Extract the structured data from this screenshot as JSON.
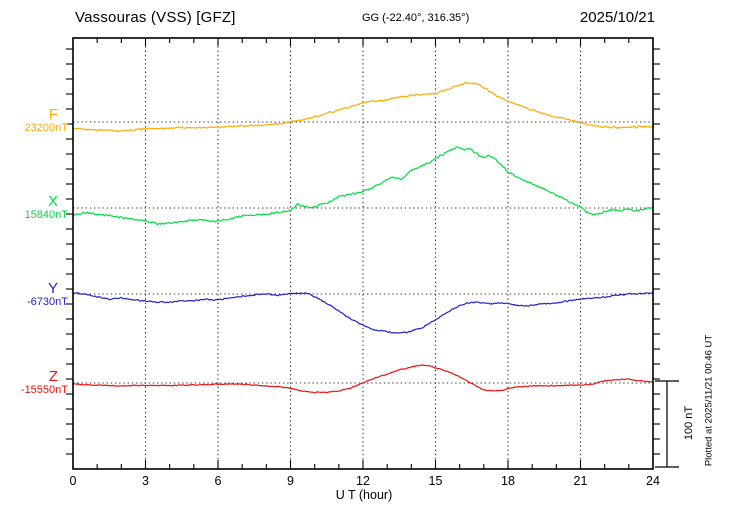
{
  "header": {
    "station_title": "Vassouras (VSS)  [GFZ]",
    "gg_coordinates": "GG (-22.40°, 316.35°)",
    "date": "2025/10/21"
  },
  "axes": {
    "x_title": "U T (hour)",
    "x_ticks": [
      0,
      3,
      6,
      9,
      12,
      15,
      18,
      21,
      24
    ]
  },
  "footer": {
    "plotted_at": "Plotted at 2025/11/21 00:46 UT"
  },
  "chart_data": {
    "type": "line",
    "title": "Vassouras (VSS) [GFZ] magnetogram 2025/10/21",
    "xlabel": "U T (hour)",
    "x_range": [
      0,
      24
    ],
    "x_ticks": [
      0,
      3,
      6,
      9,
      12,
      15,
      18,
      21,
      24
    ],
    "grid_hours": [
      3,
      6,
      9,
      12,
      15,
      18,
      21
    ],
    "grid": true,
    "scale_bar": {
      "label": "100 nT",
      "nt": 100
    },
    "series": [
      {
        "name": "F",
        "base_label": "23200nT",
        "base_value_nt": 23200,
        "color": "#FFAA00",
        "units": "nT offset from base",
        "points": [
          [
            0,
            -8
          ],
          [
            0.5,
            -8.5
          ],
          [
            1,
            -9
          ],
          [
            1.5,
            -9.5
          ],
          [
            2,
            -10.5
          ],
          [
            2.5,
            -9.5
          ],
          [
            3,
            -8
          ],
          [
            3.5,
            -7.5
          ],
          [
            4,
            -7
          ],
          [
            4.5,
            -6.5
          ],
          [
            5,
            -6.5
          ],
          [
            5.5,
            -6
          ],
          [
            6,
            -6
          ],
          [
            6.5,
            -5.5
          ],
          [
            7,
            -4.5
          ],
          [
            7.5,
            -4
          ],
          [
            8,
            -3.5
          ],
          [
            8.5,
            -2
          ],
          [
            9,
            0
          ],
          [
            9.5,
            2.5
          ],
          [
            10,
            6
          ],
          [
            10.5,
            10
          ],
          [
            11,
            14
          ],
          [
            11.5,
            18
          ],
          [
            12,
            22
          ],
          [
            12.5,
            24
          ],
          [
            13,
            26
          ],
          [
            13.5,
            29
          ],
          [
            14,
            31
          ],
          [
            14.5,
            32
          ],
          [
            15,
            33
          ],
          [
            15.5,
            38
          ],
          [
            16,
            43
          ],
          [
            16.3,
            45.5
          ],
          [
            16.8,
            44
          ],
          [
            17,
            40
          ],
          [
            17.5,
            31
          ],
          [
            18,
            24
          ],
          [
            18.5,
            19
          ],
          [
            19,
            14
          ],
          [
            19.5,
            9.5
          ],
          [
            20,
            6
          ],
          [
            20.5,
            3
          ],
          [
            21,
            0
          ],
          [
            21.3,
            -3
          ],
          [
            21.7,
            -5
          ],
          [
            22,
            -5.5
          ],
          [
            22.5,
            -6.5
          ],
          [
            23,
            -6
          ],
          [
            23.5,
            -5.5
          ],
          [
            24,
            -5
          ]
        ]
      },
      {
        "name": "X",
        "base_label": "15840nT",
        "base_value_nt": 15840,
        "color": "#00DD44",
        "units": "nT offset from base",
        "points": [
          [
            0,
            -8
          ],
          [
            0.3,
            -6.5
          ],
          [
            0.7,
            -6
          ],
          [
            1,
            -7.5
          ],
          [
            1.5,
            -9
          ],
          [
            2,
            -11
          ],
          [
            2.5,
            -13
          ],
          [
            3,
            -15
          ],
          [
            3.5,
            -18.5
          ],
          [
            4,
            -17.5
          ],
          [
            4.5,
            -16
          ],
          [
            5,
            -14
          ],
          [
            5.5,
            -14.5
          ],
          [
            6,
            -15
          ],
          [
            6.5,
            -12.5
          ],
          [
            7,
            -9.5
          ],
          [
            7.5,
            -8
          ],
          [
            8,
            -7
          ],
          [
            8.5,
            -5
          ],
          [
            9,
            -2.5
          ],
          [
            9.3,
            4
          ],
          [
            9.6,
            1
          ],
          [
            10,
            1.5
          ],
          [
            10.5,
            6
          ],
          [
            11,
            13
          ],
          [
            11.5,
            16
          ],
          [
            12,
            19
          ],
          [
            12.3,
            23
          ],
          [
            12.6,
            27
          ],
          [
            13,
            33
          ],
          [
            13.3,
            36
          ],
          [
            13.6,
            33
          ],
          [
            14,
            44
          ],
          [
            14.3,
            47
          ],
          [
            14.7,
            52
          ],
          [
            15,
            58
          ],
          [
            15.3,
            62
          ],
          [
            15.6,
            67
          ],
          [
            15.9,
            71
          ],
          [
            16.2,
            68
          ],
          [
            16.4,
            70
          ],
          [
            16.6,
            65
          ],
          [
            17,
            58
          ],
          [
            17.2,
            61
          ],
          [
            17.5,
            56
          ],
          [
            18,
            42
          ],
          [
            18.5,
            34
          ],
          [
            19,
            28
          ],
          [
            19.5,
            22
          ],
          [
            20,
            15
          ],
          [
            20.5,
            8
          ],
          [
            21,
            1
          ],
          [
            21.2,
            -4
          ],
          [
            21.5,
            -8
          ],
          [
            21.8,
            -6
          ],
          [
            22,
            -4.5
          ],
          [
            22.3,
            -2
          ],
          [
            22.6,
            -3
          ],
          [
            23,
            -1.5
          ],
          [
            23.3,
            -3
          ],
          [
            23.6,
            -1.5
          ],
          [
            24,
            0.5
          ]
        ]
      },
      {
        "name": "Y",
        "base_label": "-6730nT",
        "base_value_nt": -6730,
        "color": "#2222CC",
        "units": "nT offset from base",
        "points": [
          [
            0,
            1
          ],
          [
            0.5,
            0
          ],
          [
            1,
            -3.5
          ],
          [
            1.5,
            -6
          ],
          [
            2,
            -4.5
          ],
          [
            2.5,
            -7
          ],
          [
            3,
            -8
          ],
          [
            3.5,
            -9.5
          ],
          [
            4,
            -9.5
          ],
          [
            4.5,
            -8
          ],
          [
            5,
            -8
          ],
          [
            5.5,
            -6
          ],
          [
            6,
            -7
          ],
          [
            6.5,
            -4.5
          ],
          [
            7,
            -2.5
          ],
          [
            7.5,
            -1
          ],
          [
            8,
            0
          ],
          [
            8.5,
            -1.5
          ],
          [
            9,
            0.5
          ],
          [
            9.5,
            1
          ],
          [
            9.8,
            0
          ],
          [
            10,
            -3.5
          ],
          [
            10.5,
            -10.5
          ],
          [
            11,
            -20
          ],
          [
            11.5,
            -29
          ],
          [
            12,
            -36
          ],
          [
            12.5,
            -42
          ],
          [
            13,
            -44
          ],
          [
            13.4,
            -45.5
          ],
          [
            13.8,
            -44.5
          ],
          [
            14,
            -43
          ],
          [
            14.5,
            -38.5
          ],
          [
            15,
            -30
          ],
          [
            15.5,
            -21
          ],
          [
            16,
            -14
          ],
          [
            16.3,
            -10.5
          ],
          [
            16.7,
            -9.5
          ],
          [
            17,
            -10.5
          ],
          [
            17.3,
            -11.5
          ],
          [
            17.7,
            -10.5
          ],
          [
            18,
            -10.5
          ],
          [
            18.3,
            -13
          ],
          [
            18.7,
            -14
          ],
          [
            19,
            -13
          ],
          [
            19.3,
            -11.5
          ],
          [
            19.7,
            -11.5
          ],
          [
            20,
            -10.5
          ],
          [
            20.5,
            -8
          ],
          [
            21,
            -6
          ],
          [
            21.5,
            -4.5
          ],
          [
            22,
            -3.5
          ],
          [
            22.5,
            -1.5
          ],
          [
            23,
            0
          ],
          [
            23.5,
            0.5
          ],
          [
            24,
            1
          ]
        ]
      },
      {
        "name": "Z",
        "base_label": "-15550nT",
        "base_value_nt": -15550,
        "color": "#EE1111",
        "units": "nT offset from base",
        "points": [
          [
            0,
            -1
          ],
          [
            0.5,
            -2
          ],
          [
            1,
            -2.5
          ],
          [
            1.5,
            -3
          ],
          [
            2,
            -3.5
          ],
          [
            2.5,
            -3
          ],
          [
            3,
            -3
          ],
          [
            3.5,
            -3
          ],
          [
            4,
            -3
          ],
          [
            4.5,
            -2.5
          ],
          [
            5,
            -2.5
          ],
          [
            5.5,
            -2
          ],
          [
            6,
            -1.5
          ],
          [
            6.5,
            -1
          ],
          [
            7,
            -1.5
          ],
          [
            7.5,
            -2.5
          ],
          [
            8,
            -3.5
          ],
          [
            8.5,
            -4.5
          ],
          [
            9,
            -6
          ],
          [
            9.5,
            -9.5
          ],
          [
            10,
            -11
          ],
          [
            10.5,
            -10.5
          ],
          [
            11,
            -9.5
          ],
          [
            11.5,
            -5.5
          ],
          [
            12,
            0
          ],
          [
            12.5,
            6
          ],
          [
            13,
            10.5
          ],
          [
            13.5,
            15
          ],
          [
            14,
            18.5
          ],
          [
            14.3,
            20.5
          ],
          [
            14.7,
            20.5
          ],
          [
            15,
            17.5
          ],
          [
            15.5,
            13.5
          ],
          [
            16,
            7
          ],
          [
            16.3,
            2.5
          ],
          [
            16.6,
            -2.5
          ],
          [
            17,
            -8
          ],
          [
            17.5,
            -9.5
          ],
          [
            17.8,
            -8.5
          ],
          [
            18,
            -6
          ],
          [
            18.5,
            -4.5
          ],
          [
            19,
            -3.5
          ],
          [
            19.5,
            -3
          ],
          [
            20,
            -3
          ],
          [
            20.5,
            -2.5
          ],
          [
            21,
            -2.5
          ],
          [
            21.5,
            -1
          ],
          [
            22,
            2.5
          ],
          [
            22.5,
            4
          ],
          [
            23,
            4.5
          ],
          [
            23.3,
            3
          ],
          [
            23.6,
            2
          ],
          [
            24,
            1
          ]
        ]
      }
    ]
  }
}
